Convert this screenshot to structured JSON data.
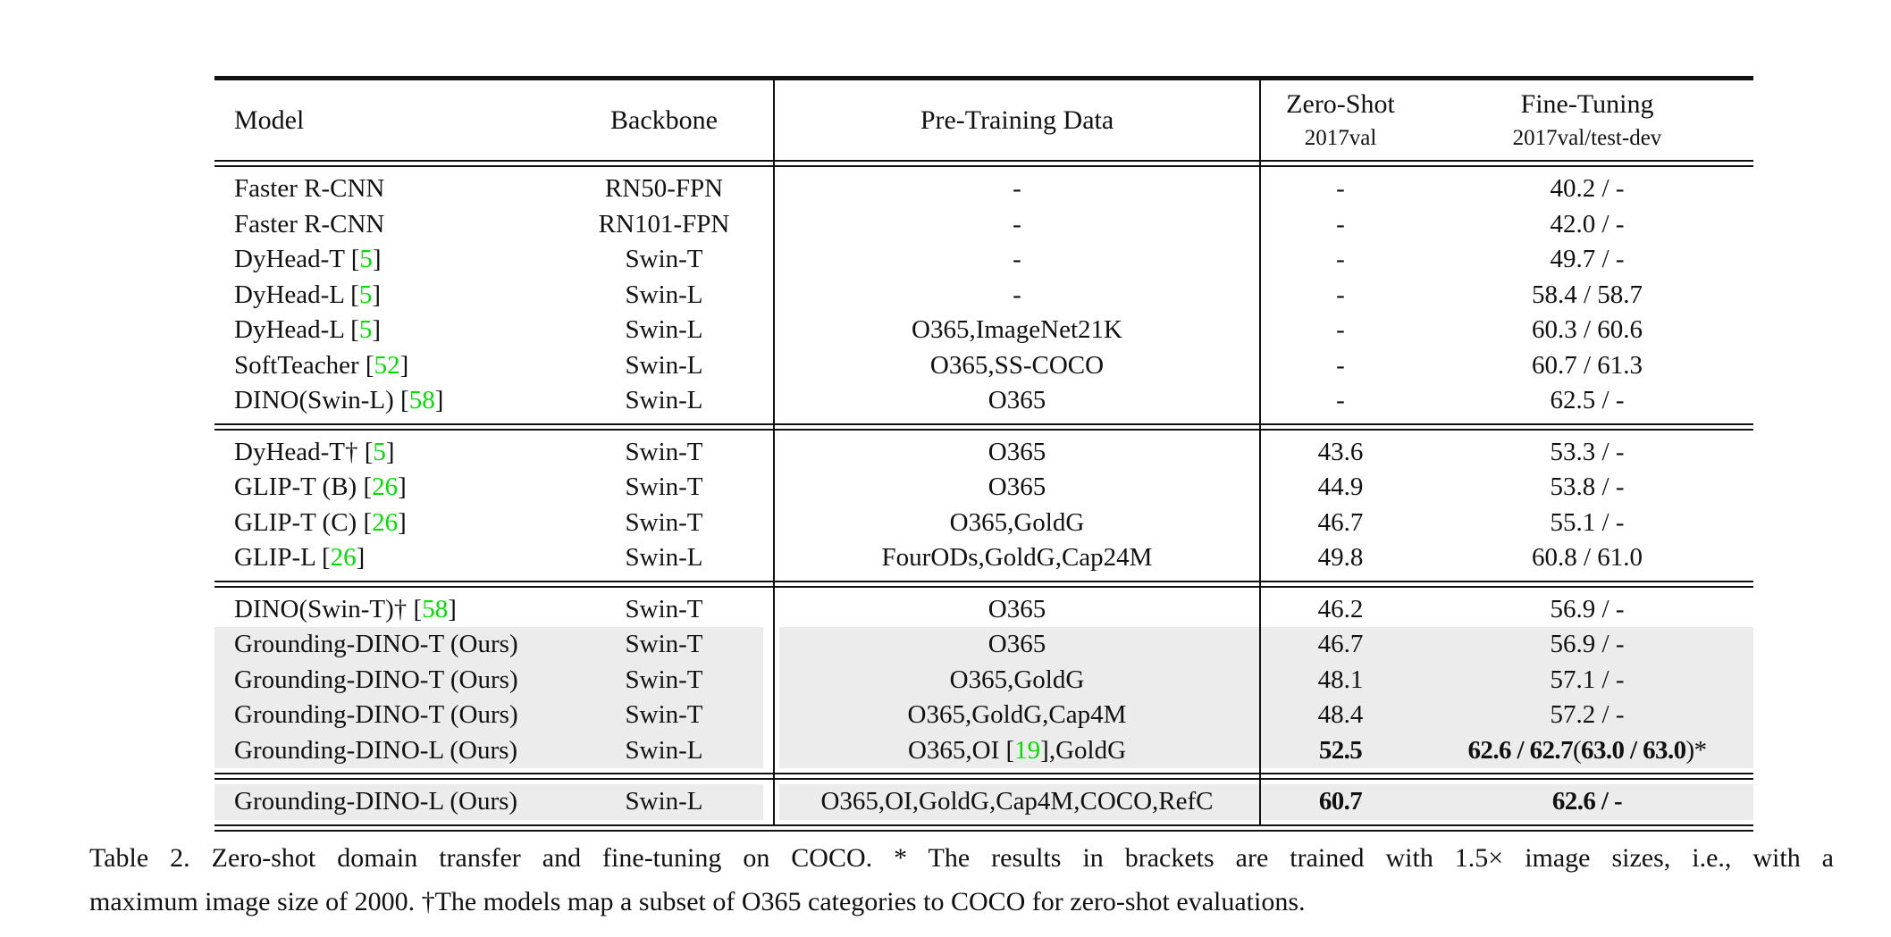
{
  "colors": {
    "citation_green": "#00e000",
    "highlight_gray": "#ececec",
    "text": "#111111"
  },
  "table": {
    "header": {
      "model": "Model",
      "backbone": "Backbone",
      "pretrain": "Pre-Training Data",
      "zeroshot_line1": "Zero-Shot",
      "zeroshot_line2": "2017val",
      "finetune_line1": "Fine-Tuning",
      "finetune_line2": "2017val/test-dev"
    },
    "sections": [
      {
        "rows": [
          {
            "model": "Faster R-CNN",
            "backbone": "RN50-FPN",
            "pretrain": "-",
            "zs": "-",
            "ft": "40.2 / -",
            "hl": false,
            "bold": false
          },
          {
            "model": "Faster R-CNN",
            "backbone": "RN101-FPN",
            "pretrain": "-",
            "zs": "-",
            "ft": "42.0 / -",
            "hl": false,
            "bold": false
          },
          {
            "model": "DyHead-T [5]",
            "backbone": "Swin-T",
            "pretrain": "-",
            "zs": "-",
            "ft": "49.7 / -",
            "hl": false,
            "bold": false
          },
          {
            "model": "DyHead-L [5]",
            "backbone": "Swin-L",
            "pretrain": "-",
            "zs": "-",
            "ft": "58.4 / 58.7",
            "hl": false,
            "bold": false
          },
          {
            "model": "DyHead-L [5]",
            "backbone": "Swin-L",
            "pretrain": "O365,ImageNet21K",
            "zs": "-",
            "ft": "60.3 / 60.6",
            "hl": false,
            "bold": false
          },
          {
            "model": "SoftTeacher [52]",
            "backbone": "Swin-L",
            "pretrain": "O365,SS-COCO",
            "zs": "-",
            "ft": "60.7 / 61.3",
            "hl": false,
            "bold": false
          },
          {
            "model": "DINO(Swin-L) [58]",
            "backbone": "Swin-L",
            "pretrain": "O365",
            "zs": "-",
            "ft": "62.5 / -",
            "hl": false,
            "bold": false
          }
        ]
      },
      {
        "rows": [
          {
            "model": "DyHead-T† [5]",
            "backbone": "Swin-T",
            "pretrain": "O365",
            "zs": "43.6",
            "ft": "53.3 / -",
            "hl": false,
            "bold": false
          },
          {
            "model": "GLIP-T (B) [26]",
            "backbone": "Swin-T",
            "pretrain": "O365",
            "zs": "44.9",
            "ft": "53.8 / -",
            "hl": false,
            "bold": false
          },
          {
            "model": "GLIP-T (C) [26]",
            "backbone": "Swin-T",
            "pretrain": "O365,GoldG",
            "zs": "46.7",
            "ft": "55.1 / -",
            "hl": false,
            "bold": false
          },
          {
            "model": "GLIP-L [26]",
            "backbone": "Swin-L",
            "pretrain": "FourODs,GoldG,Cap24M",
            "zs": "49.8",
            "ft": "60.8 / 61.0",
            "hl": false,
            "bold": false
          }
        ]
      },
      {
        "rows": [
          {
            "model": "DINO(Swin-T)† [58]",
            "backbone": "Swin-T",
            "pretrain": "O365",
            "zs": "46.2",
            "ft": "56.9 / -",
            "hl": false,
            "bold": false
          },
          {
            "model": "Grounding-DINO-T (Ours)",
            "backbone": "Swin-T",
            "pretrain": "O365",
            "zs": "46.7",
            "ft": "56.9 / -",
            "hl": true,
            "bold": false
          },
          {
            "model": "Grounding-DINO-T (Ours)",
            "backbone": "Swin-T",
            "pretrain": "O365,GoldG",
            "zs": "48.1",
            "ft": "57.1 / -",
            "hl": true,
            "bold": false
          },
          {
            "model": "Grounding-DINO-T (Ours)",
            "backbone": "Swin-T",
            "pretrain": "O365,GoldG,Cap4M",
            "zs": "48.4",
            "ft": "57.2 / -",
            "hl": true,
            "bold": false
          },
          {
            "model": "Grounding-DINO-L (Ours)",
            "backbone": "Swin-L",
            "pretrain": "O365,OI [19],GoldG",
            "zs": "52.5",
            "ft": "62.6 / 62.7 (63.0 / 63.0)*",
            "hl": true,
            "bold": true
          }
        ]
      },
      {
        "rows": [
          {
            "model": "Grounding-DINO-L (Ours)",
            "backbone": "Swin-L",
            "pretrain": "O365,OI,GoldG,Cap4M,COCO,RefC",
            "zs": "60.7",
            "ft": "62.6 / -",
            "hl": true,
            "bold": true
          }
        ]
      }
    ]
  },
  "caption": {
    "line1": "Table 2.  Zero-shot domain transfer and fine-tuning on COCO. * The results in brackets are trained with 1.5× image sizes, i.e., with a",
    "line2": "maximum image size of 2000. †The models map a subset of O365 categories to COCO for zero-shot evaluations."
  }
}
